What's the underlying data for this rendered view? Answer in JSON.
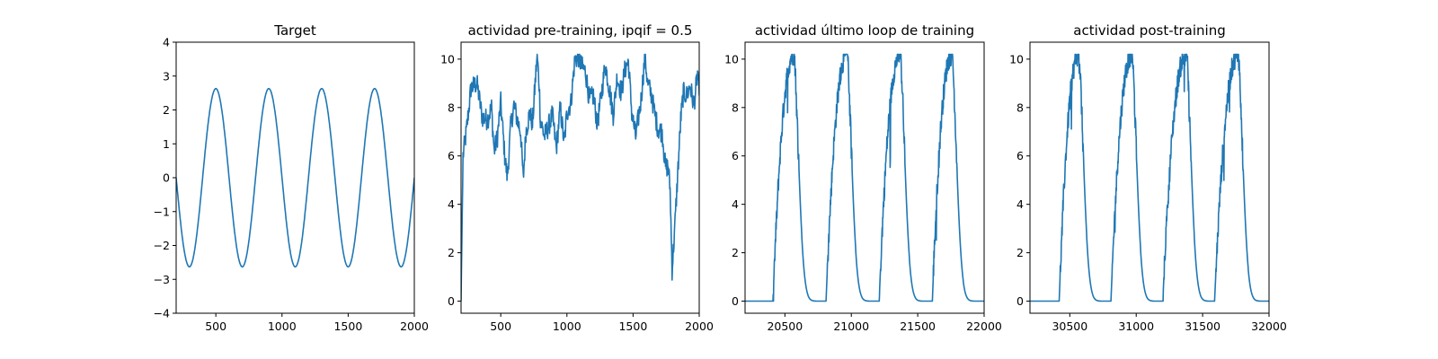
{
  "figure": {
    "background": "#ffffff",
    "line_color": "#1f77b4"
  },
  "chart_data": [
    {
      "type": "line",
      "title": "Target",
      "xlabel": "",
      "ylabel": "",
      "xlim": [
        200,
        2000
      ],
      "ylim": [
        -4,
        4
      ],
      "xticks": [
        500,
        1000,
        1500,
        2000
      ],
      "yticks": [
        -4,
        -3,
        -2,
        -1,
        0,
        1,
        2,
        3,
        4
      ],
      "grid": false,
      "series": [
        {
          "kind": "sine",
          "amplitude": 2.63,
          "period": 400,
          "peak_x": [
            500,
            900,
            1300,
            1700
          ],
          "trough_x": [
            300,
            700,
            1100,
            1500,
            1900
          ],
          "start": [
            200,
            0.35
          ],
          "end": [
            2000,
            -0.4
          ]
        }
      ]
    },
    {
      "type": "line",
      "title": "actividad pre-training, ipqif = 0.5",
      "xlabel": "",
      "ylabel": "",
      "xlim": [
        200,
        2000
      ],
      "ylim": [
        -0.5,
        10.7
      ],
      "xticks": [
        500,
        1000,
        1500,
        2000
      ],
      "yticks": [
        0,
        2,
        4,
        6,
        8,
        10
      ],
      "grid": false,
      "series": [
        {
          "kind": "noisy",
          "points": [
            [
              200,
              0.0
            ],
            [
              215,
              6.0
            ],
            [
              240,
              7.0
            ],
            [
              275,
              8.8
            ],
            [
              320,
              9.0
            ],
            [
              360,
              7.6
            ],
            [
              400,
              7.5
            ],
            [
              430,
              8.0
            ],
            [
              450,
              6.2
            ],
            [
              475,
              6.8
            ],
            [
              500,
              8.2
            ],
            [
              530,
              6.0
            ],
            [
              550,
              5.1
            ],
            [
              575,
              7.2
            ],
            [
              600,
              8.1
            ],
            [
              625,
              7.5
            ],
            [
              650,
              7.0
            ],
            [
              670,
              5.0
            ],
            [
              690,
              7.0
            ],
            [
              720,
              7.8
            ],
            [
              740,
              7.3
            ],
            [
              760,
              9.0
            ],
            [
              775,
              10.15
            ],
            [
              790,
              9.0
            ],
            [
              800,
              7.5
            ],
            [
              830,
              6.8
            ],
            [
              860,
              7.2
            ],
            [
              890,
              7.7
            ],
            [
              920,
              6.3
            ],
            [
              950,
              8.0
            ],
            [
              980,
              6.5
            ],
            [
              1000,
              7.8
            ],
            [
              1030,
              8.2
            ],
            [
              1060,
              10.0
            ],
            [
              1090,
              10.1
            ],
            [
              1110,
              9.7
            ],
            [
              1140,
              9.5
            ],
            [
              1170,
              8.3
            ],
            [
              1200,
              8.5
            ],
            [
              1230,
              7.3
            ],
            [
              1260,
              8.5
            ],
            [
              1290,
              9.8
            ],
            [
              1320,
              8.8
            ],
            [
              1350,
              7.7
            ],
            [
              1380,
              9.3
            ],
            [
              1410,
              8.6
            ],
            [
              1440,
              9.6
            ],
            [
              1465,
              9.9
            ],
            [
              1490,
              7.8
            ],
            [
              1520,
              6.8
            ],
            [
              1560,
              8.3
            ],
            [
              1590,
              10.15
            ],
            [
              1610,
              9.0
            ],
            [
              1640,
              8.5
            ],
            [
              1665,
              7.7
            ],
            [
              1690,
              7.1
            ],
            [
              1720,
              7.0
            ],
            [
              1745,
              5.5
            ],
            [
              1765,
              5.6
            ],
            [
              1780,
              4.6
            ],
            [
              1795,
              1.3
            ],
            [
              1815,
              3.0
            ],
            [
              1840,
              5.5
            ],
            [
              1860,
              7.5
            ],
            [
              1880,
              8.6
            ],
            [
              1905,
              8.5
            ],
            [
              1930,
              8.9
            ],
            [
              1960,
              8.1
            ],
            [
              1990,
              9.5
            ],
            [
              2000,
              8.5
            ]
          ]
        }
      ]
    },
    {
      "type": "line",
      "title": "actividad último loop de training",
      "xlabel": "",
      "ylabel": "",
      "xlim": [
        20200,
        22000
      ],
      "ylim": [
        -0.5,
        10.7
      ],
      "xticks": [
        20500,
        21000,
        21500,
        22000
      ],
      "yticks": [
        0,
        2,
        4,
        6,
        8,
        10
      ],
      "grid": false,
      "series": [
        {
          "kind": "pulses",
          "baseline": 0,
          "peak": 10.2,
          "pulse_starts": [
            20410,
            20810,
            21210,
            21610
          ],
          "pulse_peaks": [
            20570,
            20970,
            21370,
            21760
          ],
          "pulse_width": 200
        }
      ]
    },
    {
      "type": "line",
      "title": "actividad post-training",
      "xlabel": "",
      "ylabel": "",
      "xlim": [
        30200,
        32000
      ],
      "ylim": [
        -0.5,
        10.7
      ],
      "xticks": [
        30500,
        31000,
        31500,
        32000
      ],
      "yticks": [
        0,
        2,
        4,
        6,
        8,
        10
      ],
      "grid": false,
      "series": [
        {
          "kind": "pulses",
          "baseline": 0,
          "peak": 10.2,
          "pulse_starts": [
            30420,
            30810,
            31200,
            31590
          ],
          "pulse_peaks": [
            30570,
            30970,
            31380,
            31770
          ],
          "pulse_width": 200
        }
      ]
    }
  ]
}
